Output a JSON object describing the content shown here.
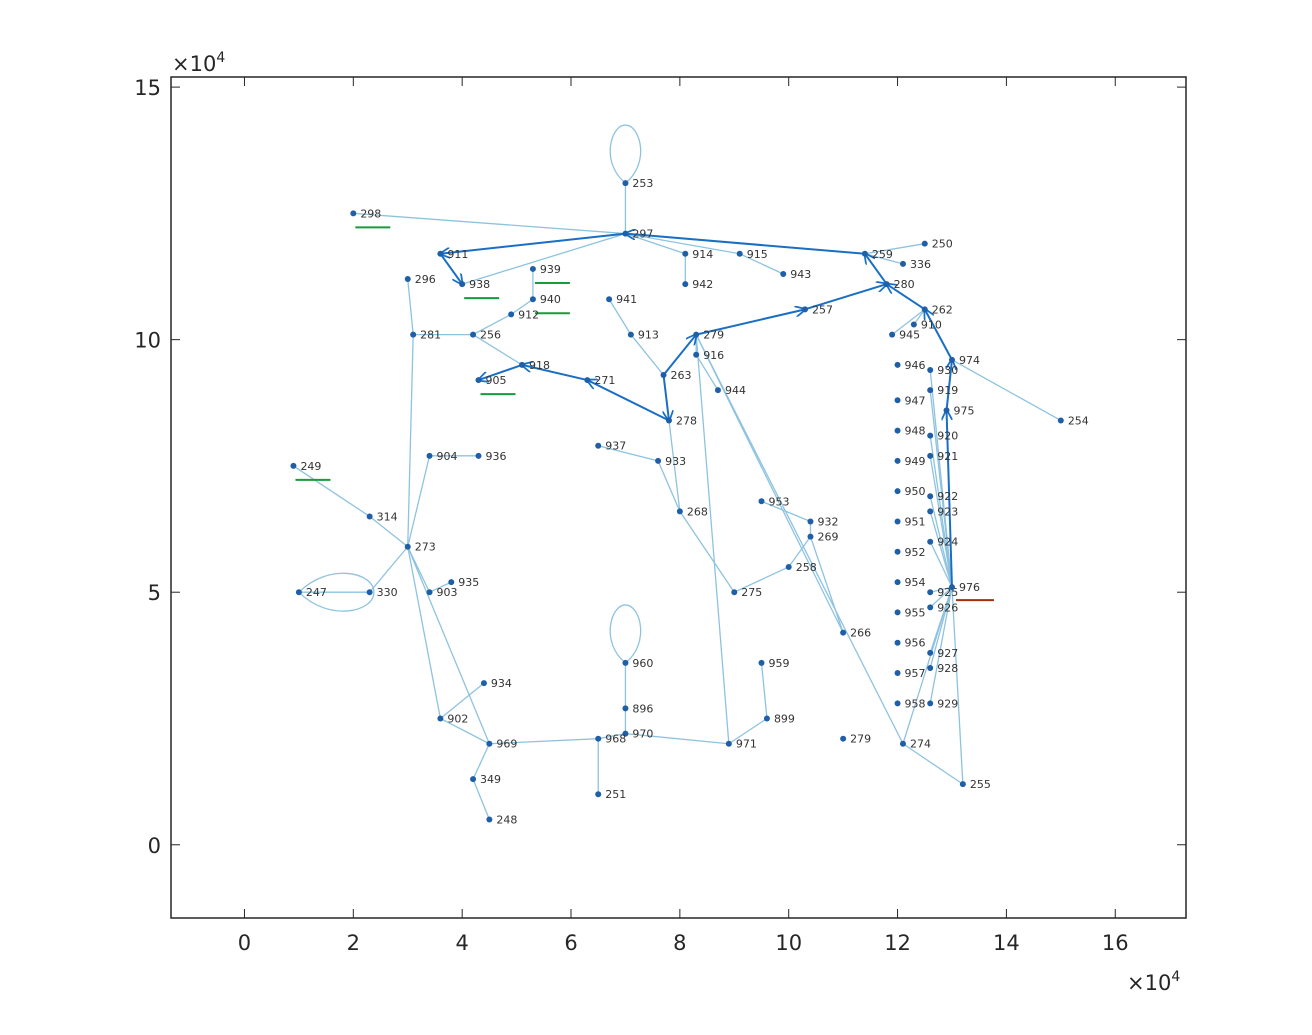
{
  "chart_data": {
    "type": "scatter",
    "title": "",
    "xlabel": "",
    "ylabel": "",
    "x_multiplier": "×10",
    "x_multiplier_exp": "4",
    "y_multiplier": "×10",
    "y_multiplier_exp": "4",
    "xlim": [
      -1.35,
      17.3
    ],
    "ylim": [
      -1.45,
      15.2
    ],
    "xticks": [
      0,
      2,
      4,
      6,
      8,
      10,
      12,
      14,
      16
    ],
    "yticks": [
      0,
      5,
      10,
      15
    ],
    "grid": false,
    "colors": {
      "edge": "#8ec3e0",
      "node": "#1f5fa8",
      "path": "#1a6fc4",
      "green_mark": "#1a9a3a",
      "red_mark": "#a03010",
      "axis": "#262626"
    },
    "nodes": [
      {
        "id": "253",
        "x": 7.0,
        "y": 13.1
      },
      {
        "id": "297",
        "x": 7.0,
        "y": 12.1
      },
      {
        "id": "298",
        "x": 2.0,
        "y": 12.5
      },
      {
        "id": "911",
        "x": 3.6,
        "y": 11.7
      },
      {
        "id": "938",
        "x": 4.0,
        "y": 11.1
      },
      {
        "id": "939",
        "x": 5.3,
        "y": 11.4
      },
      {
        "id": "940",
        "x": 5.3,
        "y": 10.8
      },
      {
        "id": "912",
        "x": 4.9,
        "y": 10.5
      },
      {
        "id": "296",
        "x": 3.0,
        "y": 11.2
      },
      {
        "id": "281",
        "x": 3.1,
        "y": 10.1
      },
      {
        "id": "256",
        "x": 4.2,
        "y": 10.1
      },
      {
        "id": "918",
        "x": 5.1,
        "y": 9.5
      },
      {
        "id": "905",
        "x": 4.3,
        "y": 9.2
      },
      {
        "id": "271",
        "x": 6.3,
        "y": 9.2
      },
      {
        "id": "941",
        "x": 6.7,
        "y": 10.8
      },
      {
        "id": "913",
        "x": 7.1,
        "y": 10.1
      },
      {
        "id": "914",
        "x": 8.1,
        "y": 11.7
      },
      {
        "id": "942",
        "x": 8.1,
        "y": 11.1
      },
      {
        "id": "915",
        "x": 9.1,
        "y": 11.7
      },
      {
        "id": "943",
        "x": 9.9,
        "y": 11.3
      },
      {
        "id": "259",
        "x": 11.4,
        "y": 11.7
      },
      {
        "id": "250",
        "x": 12.5,
        "y": 11.9
      },
      {
        "id": "336",
        "x": 12.1,
        "y": 11.5
      },
      {
        "id": "280",
        "x": 11.8,
        "y": 11.1
      },
      {
        "id": "257",
        "x": 10.3,
        "y": 10.6
      },
      {
        "id": "262",
        "x": 12.5,
        "y": 10.6
      },
      {
        "id": "910",
        "x": 12.3,
        "y": 10.3
      },
      {
        "id": "945",
        "x": 11.9,
        "y": 10.1
      },
      {
        "id": "279",
        "x": 8.3,
        "y": 10.1
      },
      {
        "id": "916",
        "x": 8.3,
        "y": 9.7
      },
      {
        "id": "263",
        "x": 7.7,
        "y": 9.3
      },
      {
        "id": "944",
        "x": 8.7,
        "y": 9.0
      },
      {
        "id": "278",
        "x": 7.8,
        "y": 8.4
      },
      {
        "id": "937",
        "x": 6.5,
        "y": 7.9
      },
      {
        "id": "933",
        "x": 7.6,
        "y": 7.6
      },
      {
        "id": "268",
        "x": 8.0,
        "y": 6.6
      },
      {
        "id": "953",
        "x": 9.5,
        "y": 6.8
      },
      {
        "id": "932",
        "x": 10.4,
        "y": 6.4
      },
      {
        "id": "269",
        "x": 10.4,
        "y": 6.1
      },
      {
        "id": "258",
        "x": 10.0,
        "y": 5.5
      },
      {
        "id": "275",
        "x": 9.0,
        "y": 5.0
      },
      {
        "id": "266",
        "x": 11.0,
        "y": 4.2
      },
      {
        "id": "974",
        "x": 13.0,
        "y": 9.6
      },
      {
        "id": "254",
        "x": 15.0,
        "y": 8.4
      },
      {
        "id": "946",
        "x": 12.0,
        "y": 9.5
      },
      {
        "id": "930",
        "x": 12.6,
        "y": 9.4
      },
      {
        "id": "919",
        "x": 12.6,
        "y": 9.0
      },
      {
        "id": "947",
        "x": 12.0,
        "y": 8.8
      },
      {
        "id": "975",
        "x": 12.9,
        "y": 8.6
      },
      {
        "id": "948",
        "x": 12.0,
        "y": 8.2
      },
      {
        "id": "920",
        "x": 12.6,
        "y": 8.1
      },
      {
        "id": "949",
        "x": 12.0,
        "y": 7.6
      },
      {
        "id": "921",
        "x": 12.6,
        "y": 7.7
      },
      {
        "id": "950",
        "x": 12.0,
        "y": 7.0
      },
      {
        "id": "922",
        "x": 12.6,
        "y": 6.9
      },
      {
        "id": "951",
        "x": 12.0,
        "y": 6.4
      },
      {
        "id": "923",
        "x": 12.6,
        "y": 6.6
      },
      {
        "id": "952",
        "x": 12.0,
        "y": 5.8
      },
      {
        "id": "924",
        "x": 12.6,
        "y": 6.0
      },
      {
        "id": "954",
        "x": 12.0,
        "y": 5.2
      },
      {
        "id": "925",
        "x": 12.6,
        "y": 5.0
      },
      {
        "id": "976",
        "x": 13.0,
        "y": 5.1
      },
      {
        "id": "955",
        "x": 12.0,
        "y": 4.6
      },
      {
        "id": "926",
        "x": 12.6,
        "y": 4.7
      },
      {
        "id": "956",
        "x": 12.0,
        "y": 4.0
      },
      {
        "id": "927",
        "x": 12.6,
        "y": 3.8
      },
      {
        "id": "957",
        "x": 12.0,
        "y": 3.4
      },
      {
        "id": "928",
        "x": 12.6,
        "y": 3.5
      },
      {
        "id": "958",
        "x": 12.0,
        "y": 2.8
      },
      {
        "id": "929",
        "x": 12.6,
        "y": 2.8
      },
      {
        "id": "255",
        "x": 13.2,
        "y": 1.2
      },
      {
        "id": "274",
        "x": 12.1,
        "y": 2.0
      },
      {
        "id": "249",
        "x": 0.9,
        "y": 7.5
      },
      {
        "id": "314",
        "x": 2.3,
        "y": 6.5
      },
      {
        "id": "273",
        "x": 3.0,
        "y": 5.9
      },
      {
        "id": "904",
        "x": 3.4,
        "y": 7.7
      },
      {
        "id": "936",
        "x": 4.3,
        "y": 7.7
      },
      {
        "id": "247",
        "x": 1.0,
        "y": 5.0
      },
      {
        "id": "330",
        "x": 2.3,
        "y": 5.0
      },
      {
        "id": "903",
        "x": 3.4,
        "y": 5.0
      },
      {
        "id": "935",
        "x": 3.8,
        "y": 5.2
      },
      {
        "id": "934",
        "x": 4.4,
        "y": 3.2
      },
      {
        "id": "902",
        "x": 3.6,
        "y": 2.5
      },
      {
        "id": "969",
        "x": 4.5,
        "y": 2.0
      },
      {
        "id": "349",
        "x": 4.2,
        "y": 1.3
      },
      {
        "id": "248",
        "x": 4.5,
        "y": 0.5
      },
      {
        "id": "960",
        "x": 7.0,
        "y": 3.6
      },
      {
        "id": "896",
        "x": 7.0,
        "y": 2.7
      },
      {
        "id": "970",
        "x": 7.0,
        "y": 2.2
      },
      {
        "id": "968",
        "x": 6.5,
        "y": 2.1
      },
      {
        "id": "251",
        "x": 6.5,
        "y": 1.0
      },
      {
        "id": "959",
        "x": 9.5,
        "y": 3.6
      },
      {
        "id": "899",
        "x": 9.6,
        "y": 2.5
      },
      {
        "id": "971",
        "x": 8.9,
        "y": 2.0
      },
      {
        "id": "279",
        "x": 11.0,
        "y": 2.1
      }
    ],
    "edges": [
      [
        "253",
        "297"
      ],
      [
        "298",
        "297"
      ],
      [
        "911",
        "297"
      ],
      [
        "938",
        "297"
      ],
      [
        "911",
        "938"
      ],
      [
        "297",
        "914"
      ],
      [
        "914",
        "942"
      ],
      [
        "297",
        "915"
      ],
      [
        "915",
        "943"
      ],
      [
        "297",
        "259"
      ],
      [
        "259",
        "250"
      ],
      [
        "259",
        "336"
      ],
      [
        "259",
        "280"
      ],
      [
        "280",
        "257"
      ],
      [
        "280",
        "262"
      ],
      [
        "262",
        "910"
      ],
      [
        "262",
        "945"
      ],
      [
        "262",
        "974"
      ],
      [
        "974",
        "254"
      ],
      [
        "257",
        "279"
      ],
      [
        "279",
        "916"
      ],
      [
        "916",
        "944"
      ],
      [
        "279",
        "263"
      ],
      [
        "263",
        "913"
      ],
      [
        "913",
        "941"
      ],
      [
        "263",
        "278"
      ],
      [
        "278",
        "271"
      ],
      [
        "271",
        "918"
      ],
      [
        "918",
        "905"
      ],
      [
        "918",
        "256"
      ],
      [
        "256",
        "281"
      ],
      [
        "256",
        "912"
      ],
      [
        "912",
        "940"
      ],
      [
        "940",
        "939"
      ],
      [
        "281",
        "296"
      ],
      [
        "281",
        "273"
      ],
      [
        "278",
        "268"
      ],
      [
        "937",
        "933"
      ],
      [
        "933",
        "268"
      ],
      [
        "268",
        "275"
      ],
      [
        "275",
        "258"
      ],
      [
        "258",
        "269"
      ],
      [
        "269",
        "932"
      ],
      [
        "932",
        "953"
      ],
      [
        "269",
        "266"
      ],
      [
        "266",
        "279"
      ],
      [
        "249",
        "314"
      ],
      [
        "314",
        "273"
      ],
      [
        "273",
        "330"
      ],
      [
        "330",
        "247"
      ],
      [
        "273",
        "904"
      ],
      [
        "904",
        "936"
      ],
      [
        "273",
        "903"
      ],
      [
        "903",
        "935"
      ],
      [
        "273",
        "902"
      ],
      [
        "273",
        "969"
      ],
      [
        "902",
        "934"
      ],
      [
        "902",
        "969"
      ],
      [
        "969",
        "349"
      ],
      [
        "349",
        "248"
      ],
      [
        "969",
        "968"
      ],
      [
        "968",
        "251"
      ],
      [
        "968",
        "970"
      ],
      [
        "970",
        "896"
      ],
      [
        "896",
        "960"
      ],
      [
        "970",
        "971"
      ],
      [
        "971",
        "899"
      ],
      [
        "899",
        "959"
      ],
      [
        "971",
        "279"
      ],
      [
        "279",
        "274"
      ],
      [
        "274",
        "255"
      ],
      [
        "274",
        "976"
      ],
      [
        "976",
        "255"
      ],
      [
        "976",
        "975"
      ],
      [
        "975",
        "974"
      ],
      [
        "976",
        "930"
      ],
      [
        "976",
        "919"
      ],
      [
        "976",
        "920"
      ],
      [
        "976",
        "921"
      ],
      [
        "976",
        "922"
      ],
      [
        "976",
        "923"
      ],
      [
        "976",
        "924"
      ],
      [
        "976",
        "925"
      ],
      [
        "976",
        "926"
      ],
      [
        "976",
        "927"
      ],
      [
        "976",
        "928"
      ],
      [
        "976",
        "929"
      ]
    ],
    "self_loops": [
      "253",
      "247",
      "960"
    ],
    "path": [
      [
        "259",
        "297"
      ],
      [
        "297",
        "911"
      ],
      [
        "911",
        "938"
      ],
      [
        "280",
        "259"
      ],
      [
        "257",
        "280"
      ],
      [
        "279",
        "257"
      ],
      [
        "263",
        "279"
      ],
      [
        "263",
        "278"
      ],
      [
        "278",
        "271"
      ],
      [
        "271",
        "918"
      ],
      [
        "918",
        "905"
      ],
      [
        "262",
        "280"
      ],
      [
        "974",
        "262"
      ],
      [
        "975",
        "974"
      ],
      [
        "976",
        "975"
      ]
    ],
    "green_markers": [
      "298",
      "938",
      "939",
      "940",
      "905",
      "249"
    ],
    "red_markers": [
      "976"
    ]
  }
}
